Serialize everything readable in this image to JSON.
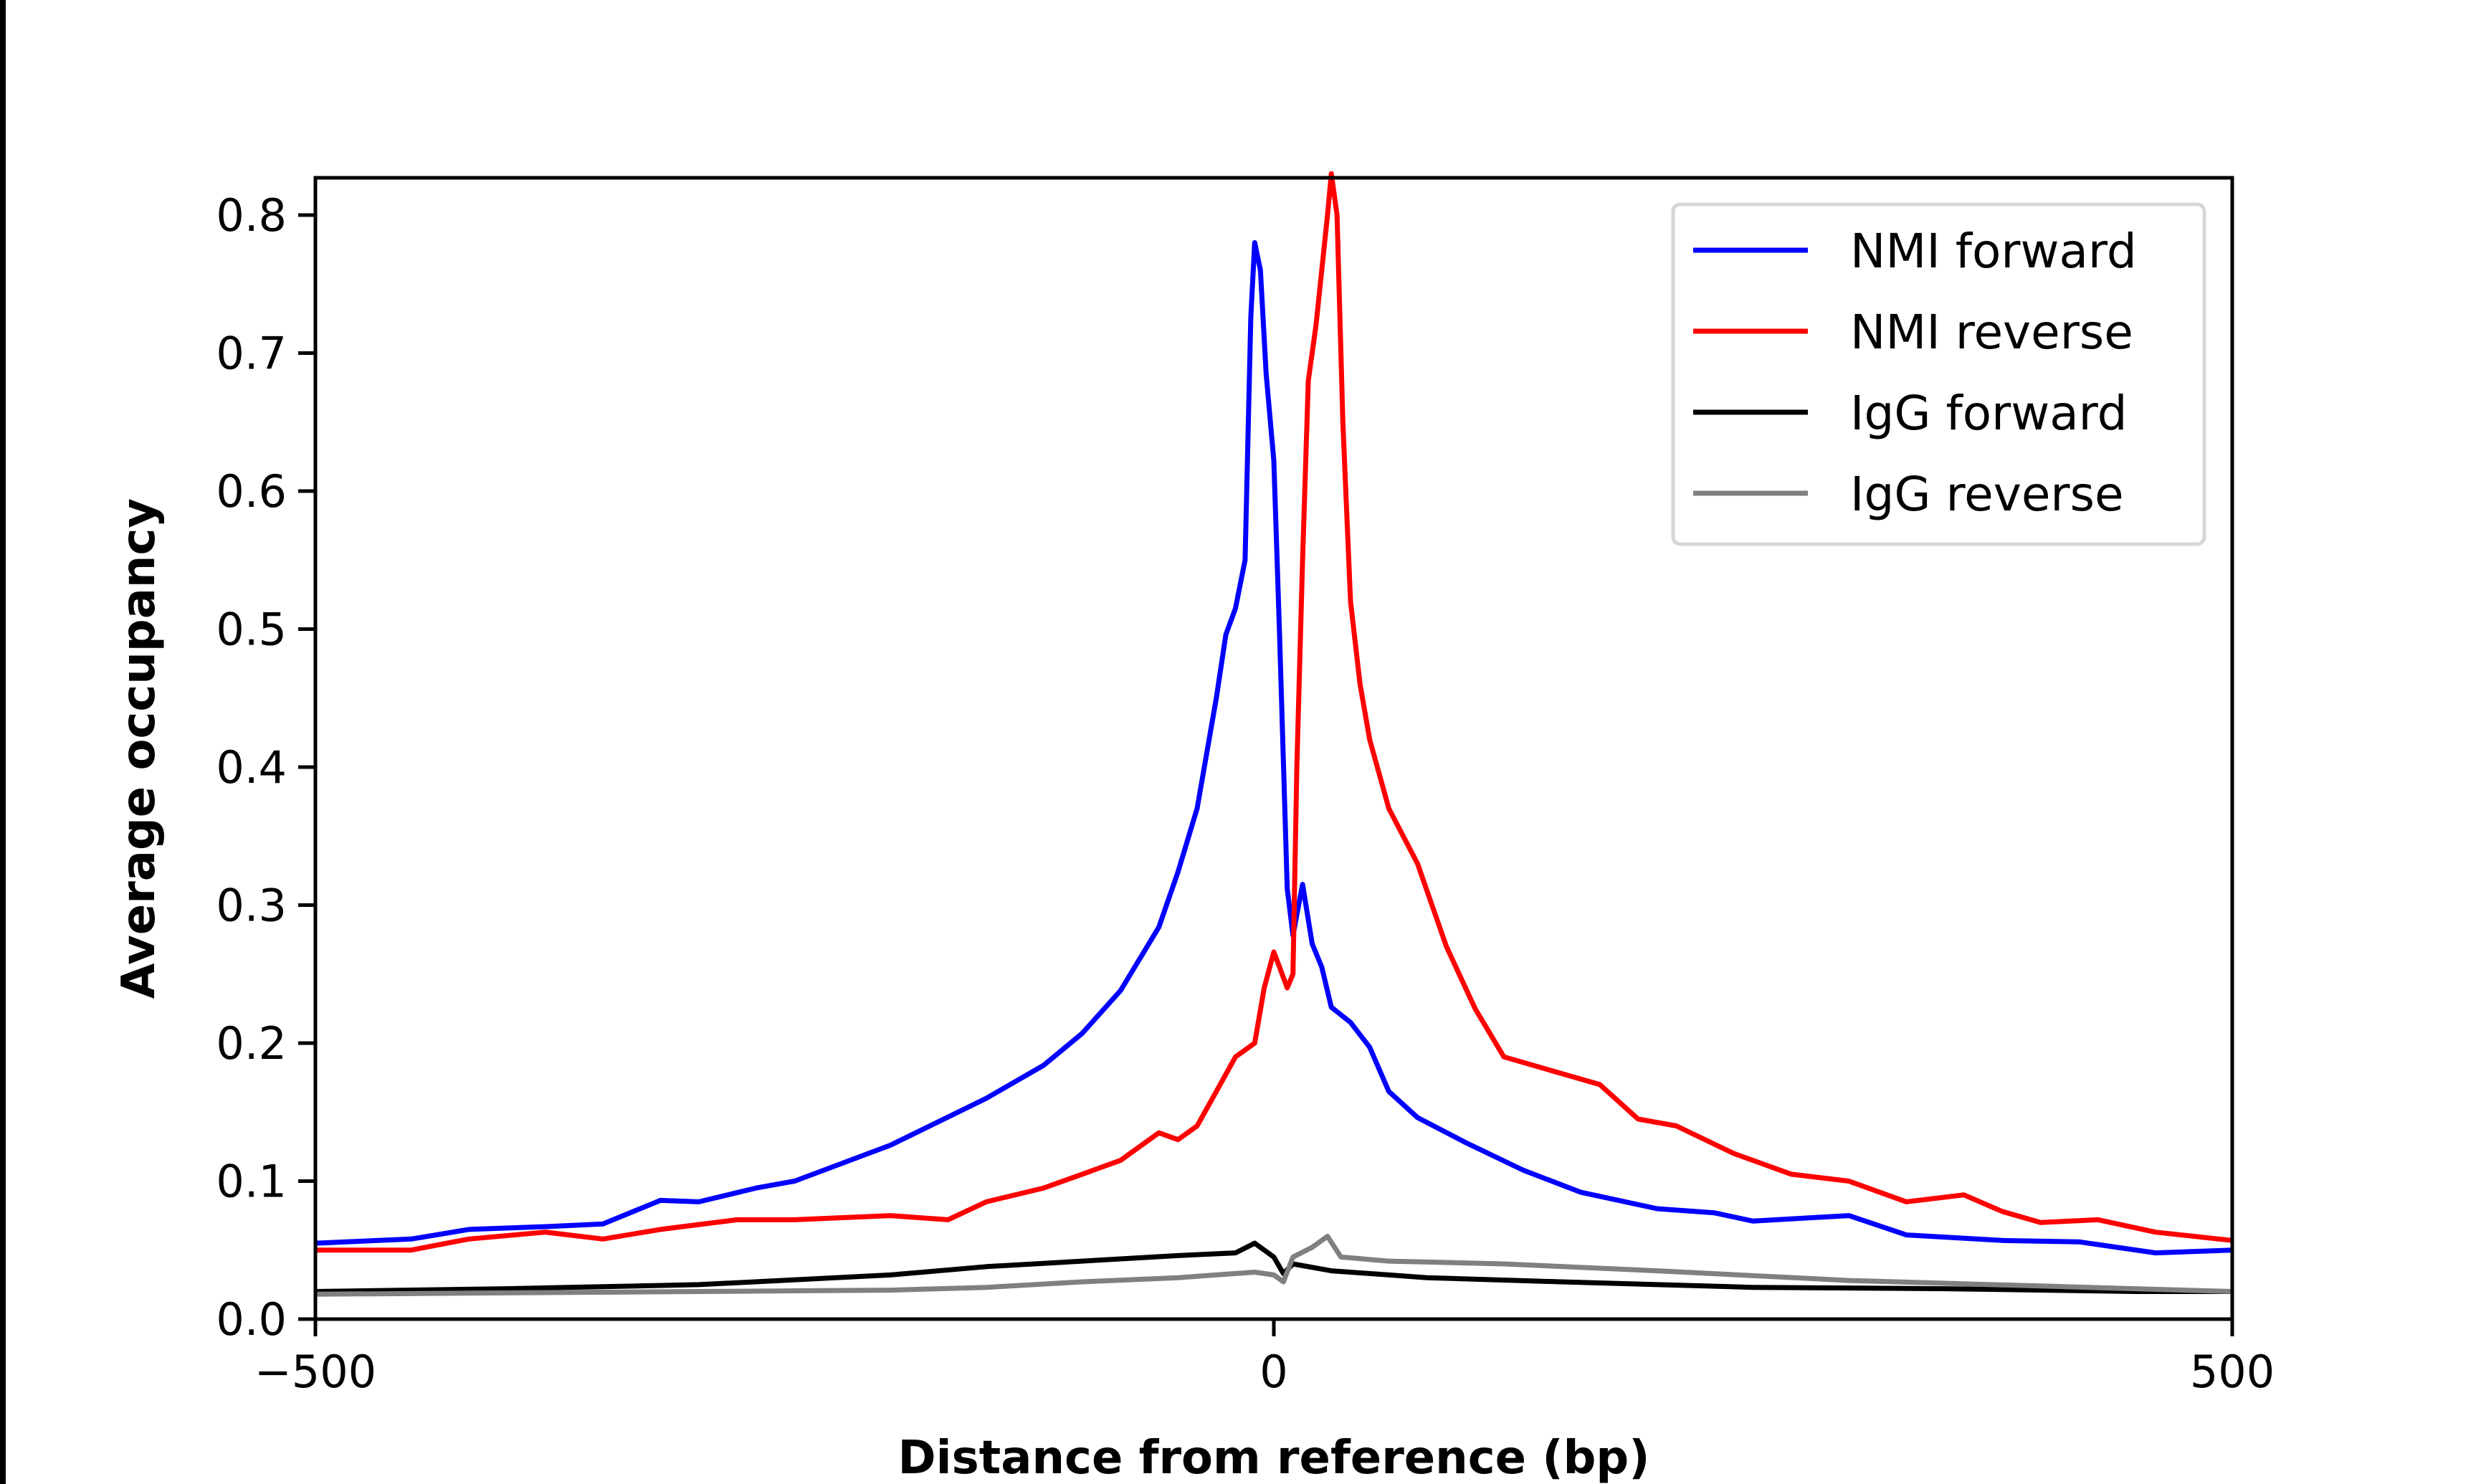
{
  "chart_data": {
    "type": "line",
    "title": "",
    "xlabel": "Distance from reference (bp)",
    "ylabel": "Average occupancy",
    "xlim": [
      -500,
      500
    ],
    "ylim": [
      0,
      0.827
    ],
    "xticks": [
      -500,
      0,
      500
    ],
    "xtick_labels": [
      "−500",
      "0",
      "500"
    ],
    "yticks": [
      0.0,
      0.1,
      0.2,
      0.3,
      0.4,
      0.5,
      0.6,
      0.7,
      0.8
    ],
    "ytick_labels": [
      "0.0",
      "0.1",
      "0.2",
      "0.3",
      "0.4",
      "0.5",
      "0.6",
      "0.7",
      "0.8"
    ],
    "grid": false,
    "legend_position": "top-right",
    "series": [
      {
        "name": "NMI forward",
        "color": "#0000ff",
        "x": [
          -500,
          -450,
          -420,
          -380,
          -350,
          -320,
          -300,
          -270,
          -250,
          -200,
          -150,
          -120,
          -100,
          -80,
          -60,
          -50,
          -40,
          -30,
          -25,
          -20,
          -15,
          -12,
          -10,
          -7,
          -4,
          0,
          3,
          7,
          10,
          15,
          20,
          25,
          30,
          40,
          50,
          60,
          75,
          100,
          130,
          160,
          200,
          230,
          250,
          300,
          330,
          380,
          420,
          460,
          500
        ],
        "y": [
          0.055,
          0.058,
          0.065,
          0.067,
          0.069,
          0.086,
          0.085,
          0.095,
          0.1,
          0.126,
          0.16,
          0.184,
          0.207,
          0.238,
          0.284,
          0.324,
          0.37,
          0.45,
          0.496,
          0.515,
          0.55,
          0.726,
          0.78,
          0.76,
          0.685,
          0.622,
          0.496,
          0.312,
          0.278,
          0.315,
          0.272,
          0.255,
          0.226,
          0.215,
          0.197,
          0.165,
          0.146,
          0.128,
          0.108,
          0.092,
          0.08,
          0.077,
          0.071,
          0.075,
          0.061,
          0.057,
          0.056,
          0.048,
          0.05
        ]
      },
      {
        "name": "NMI reverse",
        "color": "#ff0000",
        "x": [
          -500,
          -450,
          -420,
          -380,
          -350,
          -320,
          -280,
          -250,
          -200,
          -170,
          -150,
          -120,
          -100,
          -80,
          -60,
          -50,
          -40,
          -30,
          -20,
          -10,
          -5,
          0,
          3,
          7,
          10,
          12,
          15,
          18,
          22,
          28,
          30,
          33,
          36,
          40,
          45,
          50,
          60,
          75,
          90,
          105,
          120,
          145,
          170,
          190,
          210,
          240,
          270,
          300,
          330,
          360,
          380,
          400,
          430,
          460,
          500
        ],
        "y": [
          0.05,
          0.05,
          0.058,
          0.063,
          0.058,
          0.065,
          0.072,
          0.072,
          0.075,
          0.072,
          0.085,
          0.095,
          0.105,
          0.115,
          0.135,
          0.13,
          0.14,
          0.165,
          0.19,
          0.2,
          0.24,
          0.266,
          0.255,
          0.24,
          0.25,
          0.4,
          0.55,
          0.68,
          0.72,
          0.8,
          0.83,
          0.8,
          0.65,
          0.52,
          0.46,
          0.42,
          0.37,
          0.33,
          0.27,
          0.225,
          0.19,
          0.18,
          0.17,
          0.145,
          0.14,
          0.12,
          0.105,
          0.1,
          0.085,
          0.09,
          0.078,
          0.07,
          0.072,
          0.063,
          0.057
        ]
      },
      {
        "name": "IgG forward",
        "color": "#000000",
        "x": [
          -500,
          -400,
          -300,
          -200,
          -150,
          -100,
          -50,
          -20,
          -10,
          -5,
          0,
          5,
          10,
          30,
          80,
          150,
          250,
          350,
          450,
          500
        ],
        "y": [
          0.02,
          0.022,
          0.025,
          0.032,
          0.038,
          0.042,
          0.046,
          0.048,
          0.055,
          0.05,
          0.045,
          0.033,
          0.04,
          0.035,
          0.03,
          0.027,
          0.023,
          0.022,
          0.02,
          0.02
        ]
      },
      {
        "name": "IgG reverse",
        "color": "#808080",
        "x": [
          -500,
          -400,
          -300,
          -200,
          -150,
          -100,
          -50,
          -10,
          0,
          5,
          10,
          20,
          28,
          35,
          60,
          120,
          200,
          300,
          400,
          500
        ],
        "y": [
          0.018,
          0.019,
          0.02,
          0.021,
          0.023,
          0.027,
          0.03,
          0.034,
          0.032,
          0.027,
          0.045,
          0.052,
          0.06,
          0.045,
          0.042,
          0.04,
          0.035,
          0.028,
          0.024,
          0.02
        ]
      }
    ]
  }
}
